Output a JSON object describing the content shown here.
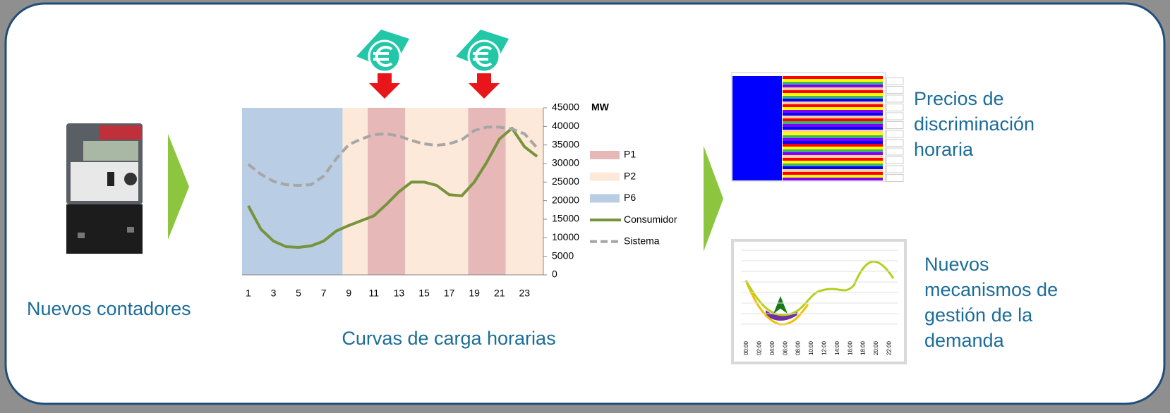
{
  "captions": {
    "meters": "Nuevos contadores",
    "curves": "Curvas de carga horarias",
    "prices": [
      "Precios de",
      "discriminación",
      "horaria"
    ],
    "demand": [
      "Nuevos",
      "mecanismos de",
      "gestión de la",
      "demanda"
    ]
  },
  "demand_thumbnail": {
    "x_labels": [
      "00:00",
      "02:00",
      "04:00",
      "06:00",
      "08:00",
      "10:00",
      "12:00",
      "14:00",
      "16:00",
      "18:00",
      "20:00",
      "22:00"
    ]
  },
  "chart_data": {
    "type": "line",
    "y_label": "MW",
    "x": [
      1,
      2,
      3,
      4,
      5,
      6,
      7,
      8,
      9,
      10,
      11,
      12,
      13,
      14,
      15,
      16,
      17,
      18,
      19,
      20,
      21,
      22,
      23,
      24
    ],
    "xlim": [
      0.5,
      24.5
    ],
    "xticks": [
      1,
      3,
      5,
      7,
      9,
      11,
      13,
      15,
      17,
      19,
      21,
      23
    ],
    "ylim": [
      0,
      45000
    ],
    "yticks": [
      0,
      5000,
      10000,
      15000,
      20000,
      25000,
      30000,
      35000,
      40000,
      45000
    ],
    "periods": [
      {
        "name": "P1",
        "color": "#e6b9b8",
        "ranges": [
          [
            10.5,
            13.5
          ],
          [
            18.5,
            21.5
          ]
        ]
      },
      {
        "name": "P2",
        "color": "#fde9d9",
        "ranges": [
          [
            8.5,
            10.5
          ],
          [
            13.5,
            18.5
          ],
          [
            21.5,
            24.5
          ]
        ]
      },
      {
        "name": "P6",
        "color": "#b9cde5",
        "ranges": [
          [
            0.5,
            8.5
          ]
        ]
      }
    ],
    "series": [
      {
        "name": "Consumidor",
        "color": "#77933c",
        "dashed": false,
        "values": [
          18600,
          12300,
          9100,
          7600,
          7400,
          7800,
          9100,
          11800,
          13300,
          14600,
          15900,
          19000,
          22400,
          25000,
          25000,
          24100,
          21600,
          21300,
          25000,
          30400,
          36600,
          39500,
          34500,
          31900
        ]
      },
      {
        "name": "Sistema",
        "color": "#a6a6a6",
        "dashed": true,
        "values": [
          29800,
          27100,
          25200,
          24300,
          24100,
          24300,
          26600,
          31300,
          35100,
          36600,
          37800,
          38000,
          37400,
          36200,
          35300,
          34900,
          35300,
          36400,
          38900,
          39800,
          39800,
          39300,
          38000,
          34200
        ]
      }
    ]
  }
}
